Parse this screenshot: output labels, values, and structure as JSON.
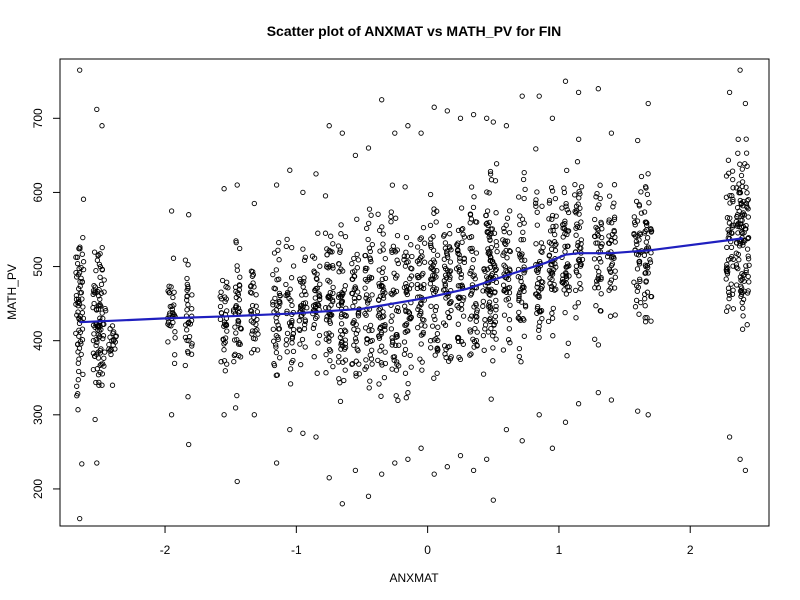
{
  "chart_data": {
    "type": "scatter",
    "title": "Scatter plot of ANXMAT vs MATH_PV for FIN",
    "xlabel": "ANXMAT",
    "ylabel": "MATH_PV",
    "xlim": [
      -2.8,
      2.6
    ],
    "ylim": [
      150,
      780
    ],
    "x_ticks": [
      -2,
      -1,
      0,
      1,
      2
    ],
    "y_ticks": [
      200,
      300,
      400,
      500,
      600,
      700
    ],
    "grid": false,
    "point_color": "#000000",
    "trend_color": "#1f1fbf",
    "scatter_columns": [
      {
        "x": -2.65,
        "ymin": 160,
        "ymax": 765,
        "mean": 425
      },
      {
        "x": -2.52,
        "ymin": 235,
        "ymax": 712,
        "mean": 428
      },
      {
        "x": -2.48,
        "ymin": 340,
        "ymax": 690,
        "mean": 427
      },
      {
        "x": -2.4,
        "ymin": 340,
        "ymax": 420,
        "mean": 400
      },
      {
        "x": -1.95,
        "ymin": 300,
        "ymax": 575,
        "mean": 430
      },
      {
        "x": -1.82,
        "ymin": 260,
        "ymax": 570,
        "mean": 432
      },
      {
        "x": -1.55,
        "ymin": 300,
        "ymax": 605,
        "mean": 434
      },
      {
        "x": -1.45,
        "ymin": 210,
        "ymax": 610,
        "mean": 435
      },
      {
        "x": -1.32,
        "ymin": 300,
        "ymax": 585,
        "mean": 436
      },
      {
        "x": -1.15,
        "ymin": 235,
        "ymax": 610,
        "mean": 437
      },
      {
        "x": -1.05,
        "ymin": 280,
        "ymax": 630,
        "mean": 438
      },
      {
        "x": -0.95,
        "ymin": 275,
        "ymax": 600,
        "mean": 439
      },
      {
        "x": -0.85,
        "ymin": 270,
        "ymax": 625,
        "mean": 440
      },
      {
        "x": -0.75,
        "ymin": 215,
        "ymax": 690,
        "mean": 441
      },
      {
        "x": -0.65,
        "ymin": 180,
        "ymax": 680,
        "mean": 443
      },
      {
        "x": -0.55,
        "ymin": 225,
        "ymax": 650,
        "mean": 445
      },
      {
        "x": -0.45,
        "ymin": 190,
        "ymax": 660,
        "mean": 448
      },
      {
        "x": -0.35,
        "ymin": 220,
        "ymax": 725,
        "mean": 450
      },
      {
        "x": -0.25,
        "ymin": 235,
        "ymax": 680,
        "mean": 453
      },
      {
        "x": -0.15,
        "ymin": 240,
        "ymax": 690,
        "mean": 456
      },
      {
        "x": -0.05,
        "ymin": 255,
        "ymax": 680,
        "mean": 462
      },
      {
        "x": 0.05,
        "ymin": 220,
        "ymax": 715,
        "mean": 468
      },
      {
        "x": 0.15,
        "ymin": 230,
        "ymax": 710,
        "mean": 472
      },
      {
        "x": 0.25,
        "ymin": 245,
        "ymax": 700,
        "mean": 477
      },
      {
        "x": 0.35,
        "ymin": 225,
        "ymax": 705,
        "mean": 483
      },
      {
        "x": 0.45,
        "ymin": 240,
        "ymax": 700,
        "mean": 488
      },
      {
        "x": 0.5,
        "ymin": 185,
        "ymax": 695,
        "mean": 490
      },
      {
        "x": 0.6,
        "ymin": 280,
        "ymax": 690,
        "mean": 496
      },
      {
        "x": 0.72,
        "ymin": 265,
        "ymax": 730,
        "mean": 502
      },
      {
        "x": 0.85,
        "ymin": 300,
        "ymax": 730,
        "mean": 508
      },
      {
        "x": 0.95,
        "ymin": 255,
        "ymax": 700,
        "mean": 512
      },
      {
        "x": 1.05,
        "ymin": 290,
        "ymax": 750,
        "mean": 516
      },
      {
        "x": 1.15,
        "ymin": 315,
        "ymax": 735,
        "mean": 518
      },
      {
        "x": 1.3,
        "ymin": 330,
        "ymax": 740,
        "mean": 518
      },
      {
        "x": 1.4,
        "ymin": 320,
        "ymax": 680,
        "mean": 518
      },
      {
        "x": 1.6,
        "ymin": 305,
        "ymax": 670,
        "mean": 520
      },
      {
        "x": 1.68,
        "ymin": 300,
        "ymax": 720,
        "mean": 522
      },
      {
        "x": 2.3,
        "ymin": 270,
        "ymax": 735,
        "mean": 535
      },
      {
        "x": 2.38,
        "ymin": 240,
        "ymax": 765,
        "mean": 537
      },
      {
        "x": 2.42,
        "ymin": 225,
        "ymax": 720,
        "mean": 537
      }
    ],
    "trend_line": {
      "x": [
        -2.65,
        -2.0,
        -1.5,
        -1.0,
        -0.5,
        0.0,
        0.3,
        0.6,
        0.9,
        1.05,
        1.15,
        1.4,
        1.7,
        2.4
      ],
      "y": [
        425,
        430,
        433,
        437,
        443,
        458,
        470,
        488,
        505,
        516,
        518,
        518,
        522,
        538
      ]
    }
  }
}
